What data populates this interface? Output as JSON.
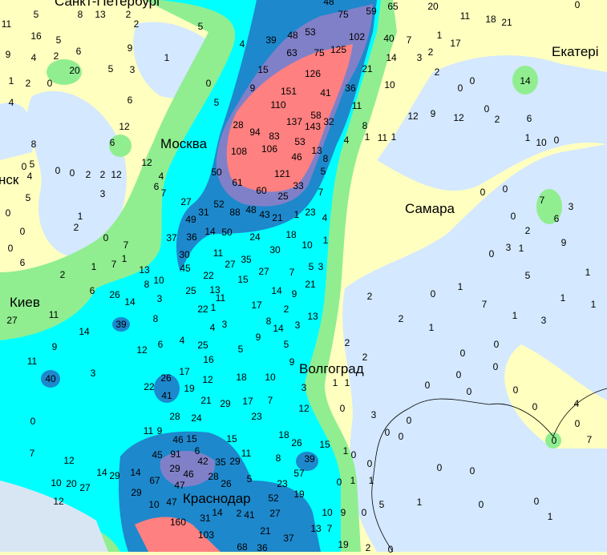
{
  "map": {
    "colors": {
      "background": "#ffffc0",
      "light_blue": "#d4e8ff",
      "sea": "#d8e6f4",
      "green": "#90ee90",
      "cyan": "#00ffff",
      "blue": "#1e88cc",
      "purple": "#8080c8",
      "pink": "#ff8080"
    },
    "cities": [
      "Санкт-Петербург",
      "Москва",
      "Самара",
      "Екатері",
      "Киев",
      "Волгоград",
      "Краснодар",
      "нск"
    ],
    "values": [
      "5",
      "8",
      "13",
      "2",
      "48",
      "75",
      "59",
      "65",
      "20",
      "11",
      "18",
      "21",
      "0",
      "11",
      "16",
      "5",
      "2",
      "5",
      "39",
      "48",
      "53",
      "102",
      "40",
      "7",
      "1",
      "9",
      "4",
      "2",
      "6",
      "9",
      "1",
      "4",
      "63",
      "75",
      "125",
      "14",
      "3",
      "2",
      "17",
      "20",
      "1",
      "2",
      "0",
      "5",
      "3",
      "15",
      "126",
      "21",
      "2",
      "14",
      "0",
      "9",
      "151",
      "41",
      "36",
      "10",
      "4",
      "6",
      "5",
      "110",
      "58",
      "11",
      "12",
      "9",
      "12",
      "12",
      "28",
      "137",
      "143",
      "32",
      "8",
      "6",
      "94",
      "83",
      "11",
      "1",
      "6",
      "108",
      "106",
      "53",
      "8",
      "4",
      "1",
      "5",
      "4",
      "46",
      "13",
      "50",
      "121",
      "5",
      "0",
      "0",
      "2",
      "12",
      "12",
      "2",
      "61",
      "33",
      "60",
      "25",
      "7",
      "27",
      "4",
      "6",
      "7",
      "52",
      "88",
      "48",
      "43",
      "21",
      "1",
      "23",
      "4",
      "31",
      "49",
      "14",
      "50",
      "24",
      "18",
      "10",
      "1",
      "37",
      "36",
      "30",
      "11",
      "27",
      "35",
      "30",
      "45",
      "22",
      "15",
      "27",
      "7",
      "5",
      "3",
      "13",
      "8",
      "10",
      "21",
      "6",
      "26",
      "14",
      "25",
      "13",
      "14",
      "9",
      "27",
      "11",
      "14",
      "39",
      "3",
      "22",
      "11",
      "17",
      "2",
      "13",
      "8",
      "1",
      "4",
      "3",
      "8",
      "14",
      "3",
      "9",
      "12",
      "6",
      "4",
      "25",
      "5",
      "9",
      "5",
      "11",
      "16",
      "9",
      "40",
      "3",
      "26",
      "17",
      "12",
      "18",
      "10",
      "22",
      "19",
      "41",
      "21",
      "29",
      "17",
      "7",
      "12",
      "3",
      "28",
      "24",
      "23",
      "0",
      "11",
      "9",
      "46",
      "15",
      "15",
      "18",
      "26",
      "15",
      "7",
      "12",
      "45",
      "91",
      "6",
      "35",
      "29",
      "11",
      "8",
      "39",
      "29",
      "42",
      "46",
      "28",
      "14",
      "29",
      "14",
      "57",
      "10",
      "20",
      "27",
      "67",
      "5",
      "23",
      "26",
      "29",
      "47",
      "47",
      "19",
      "52",
      "12",
      "10",
      "14",
      "41",
      "27",
      "10",
      "9",
      "160",
      "31",
      "2",
      "103",
      "21",
      "37",
      "13",
      "7",
      "68",
      "36",
      "19",
      "0",
      "0",
      "0",
      "2",
      "1",
      "10",
      "0",
      "0",
      "0",
      "7",
      "6",
      "3",
      "9",
      "2",
      "5",
      "1",
      "1",
      "7",
      "0",
      "1",
      "2",
      "2",
      "1",
      "3",
      "1",
      "0",
      "0",
      "0",
      "0",
      "0",
      "0",
      "0",
      "0",
      "4",
      "0",
      "7",
      "0",
      "0",
      "0",
      "0",
      "0",
      "0",
      "0",
      "0",
      "1",
      "1",
      "0",
      "0",
      "1",
      "5",
      "2",
      "0",
      "0",
      "1",
      "1",
      "2",
      "2",
      "3",
      "1",
      "1",
      "0",
      "0",
      "0",
      "0",
      "3",
      "1",
      "1",
      "8",
      "0",
      "5",
      "0",
      "0",
      "0",
      "6",
      "2",
      "1",
      "7",
      "1",
      "7",
      "0",
      "2",
      "3",
      "1"
    ]
  }
}
